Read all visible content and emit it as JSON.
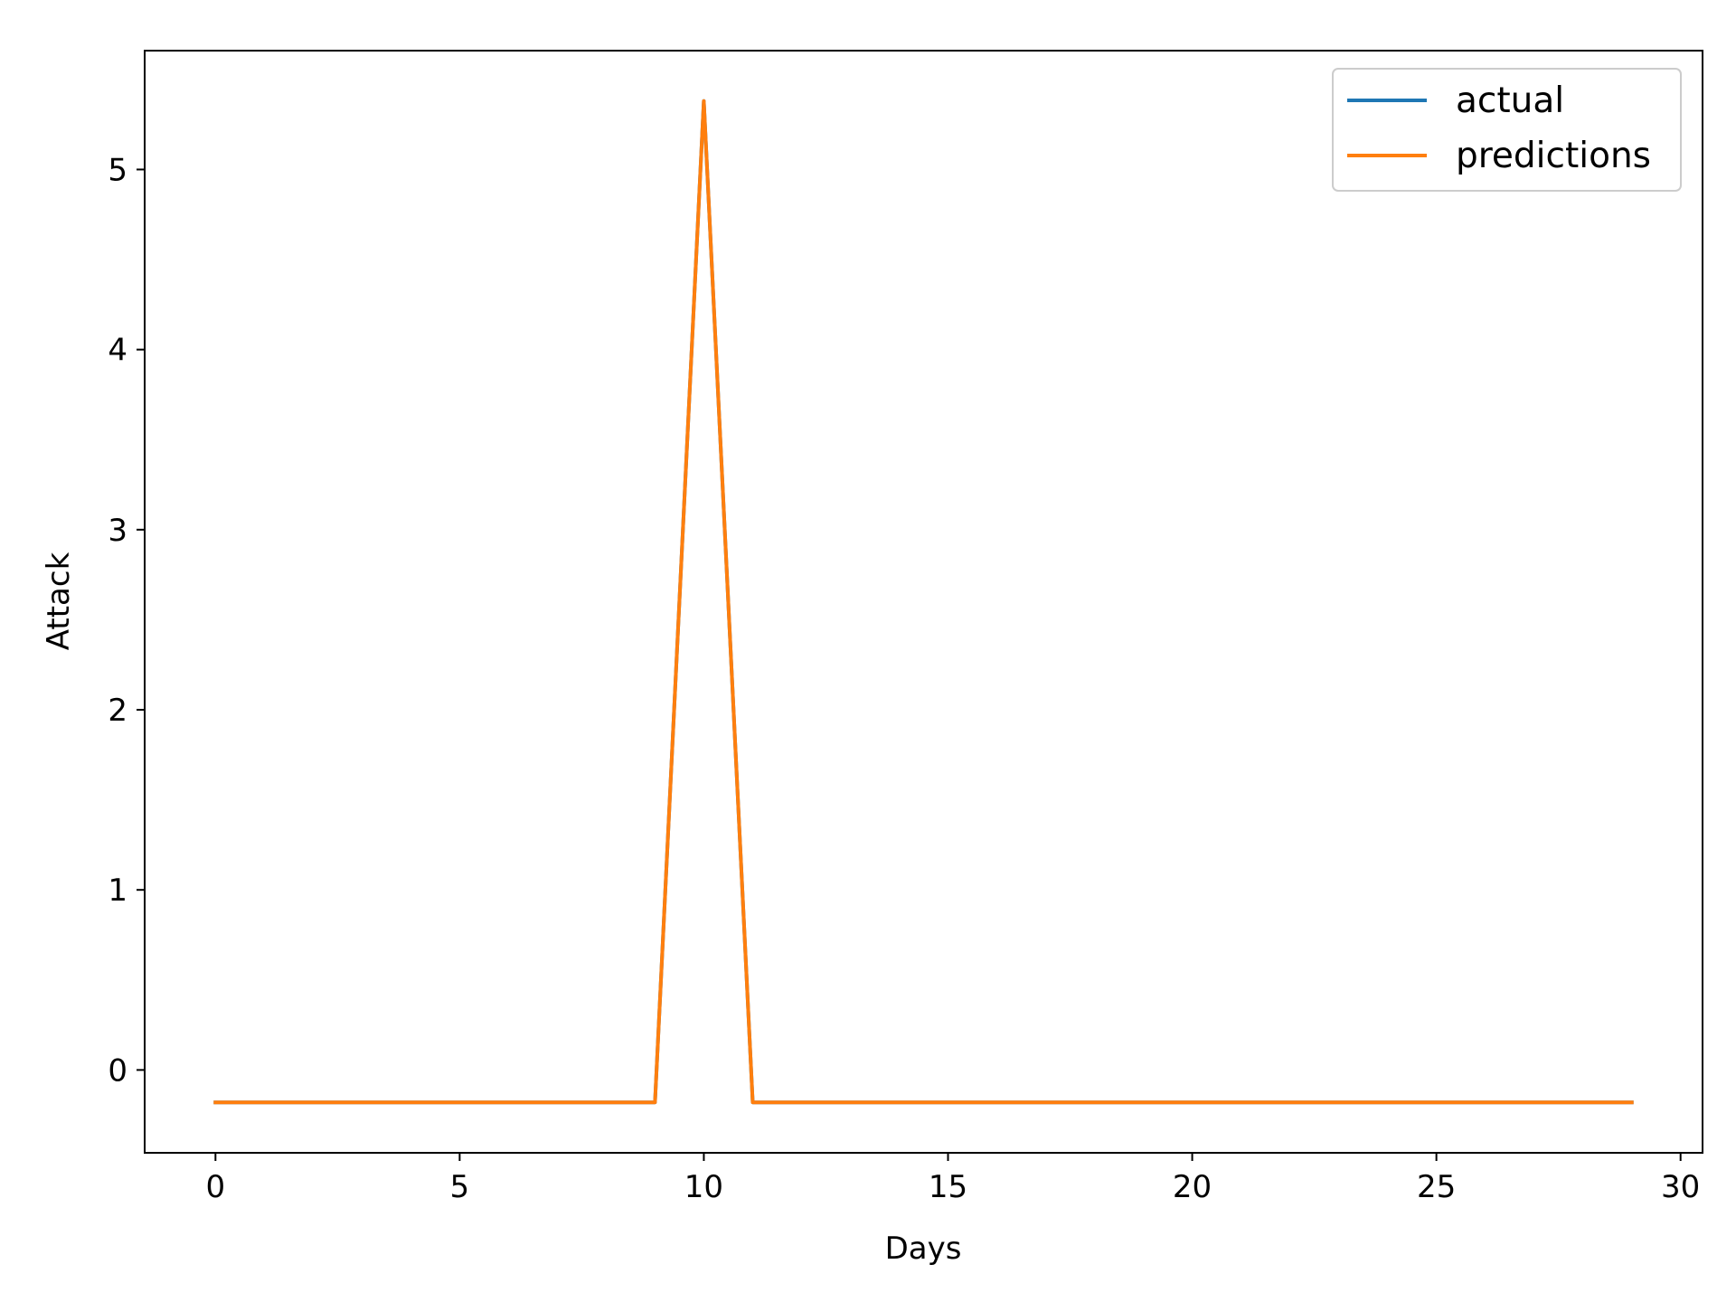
{
  "chart_data": {
    "type": "line",
    "title": "",
    "xlabel": "Days",
    "ylabel": "Attack",
    "xlim": [
      -1.45,
      30.45
    ],
    "ylim": [
      -0.46,
      5.66
    ],
    "xticks": [
      0,
      5,
      10,
      15,
      20,
      25,
      30
    ],
    "yticks": [
      0,
      1,
      2,
      3,
      4,
      5
    ],
    "grid": false,
    "legend_position": "top-right",
    "x": [
      0,
      1,
      2,
      3,
      4,
      5,
      6,
      7,
      8,
      9,
      10,
      11,
      12,
      13,
      14,
      15,
      16,
      17,
      18,
      19,
      20,
      21,
      22,
      23,
      24,
      25,
      26,
      27,
      28,
      29
    ],
    "series": [
      {
        "name": "actual",
        "color": "#1f77b4",
        "values": [
          -0.18,
          -0.18,
          -0.18,
          -0.18,
          -0.18,
          -0.18,
          -0.18,
          -0.18,
          -0.18,
          -0.18,
          5.38,
          -0.18,
          -0.18,
          -0.18,
          -0.18,
          -0.18,
          -0.18,
          -0.18,
          -0.18,
          -0.18,
          -0.18,
          -0.18,
          -0.18,
          -0.18,
          -0.18,
          -0.18,
          -0.18,
          -0.18,
          -0.18,
          -0.18
        ]
      },
      {
        "name": "predictions",
        "color": "#ff7f0e",
        "values": [
          -0.18,
          -0.18,
          -0.18,
          -0.18,
          -0.18,
          -0.18,
          -0.18,
          -0.18,
          -0.18,
          -0.18,
          5.38,
          -0.18,
          -0.18,
          -0.18,
          -0.18,
          -0.18,
          -0.18,
          -0.18,
          -0.18,
          -0.18,
          -0.18,
          -0.18,
          -0.18,
          -0.18,
          -0.18,
          -0.18,
          -0.18,
          -0.18,
          -0.18,
          -0.18
        ]
      }
    ]
  }
}
